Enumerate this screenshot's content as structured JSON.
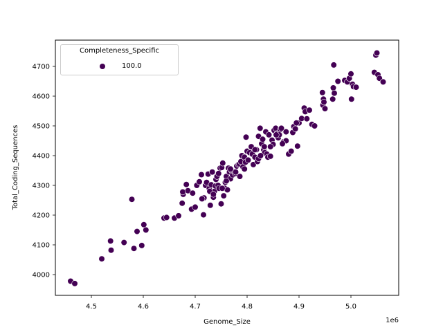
{
  "chart_data": {
    "type": "scatter",
    "title": "",
    "xlabel": "Genome_Size",
    "ylabel": "Total_Coding_Sequences",
    "x_offset_label": "1e6",
    "xlim": [
      4430000.0,
      5090000.0
    ],
    "ylim": [
      3930,
      4790
    ],
    "xticks": [
      4.5,
      4.6,
      4.7,
      4.8,
      4.9,
      5.0
    ],
    "xtick_labels": [
      "4.5",
      "4.6",
      "4.7",
      "4.8",
      "4.9",
      "5.0"
    ],
    "yticks": [
      4000,
      4100,
      4200,
      4300,
      4400,
      4500,
      4600,
      4700
    ],
    "ytick_labels": [
      "4000",
      "4100",
      "4200",
      "4300",
      "4400",
      "4500",
      "4600",
      "4700"
    ],
    "grid": false,
    "legend": {
      "title": "Completeness_Specific",
      "position": "upper left",
      "entries": [
        {
          "label": "100.0",
          "color": "#440154"
        }
      ]
    },
    "series": [
      {
        "name": "100.0",
        "color": "#440154",
        "x": [
          4.46,
          4.468,
          4.52,
          4.537,
          4.538,
          4.563,
          4.578,
          4.582,
          4.588,
          4.597,
          4.601,
          4.605,
          4.64,
          4.645,
          4.66,
          4.668,
          4.675,
          4.677,
          4.676,
          4.683,
          4.686,
          4.693,
          4.695,
          4.7,
          4.703,
          4.708,
          4.712,
          4.716,
          4.717,
          4.72,
          4.722,
          4.725,
          4.727,
          4.729,
          4.731,
          4.733,
          4.735,
          4.737,
          4.739,
          4.74,
          4.742,
          4.744,
          4.746,
          4.748,
          4.75,
          4.751,
          4.753,
          4.755,
          4.757,
          4.758,
          4.76,
          4.762,
          4.764,
          4.766,
          4.768,
          4.77,
          4.772,
          4.775,
          4.777,
          4.78,
          4.783,
          4.785,
          4.788,
          4.79,
          4.792,
          4.795,
          4.797,
          4.798,
          4.8,
          4.802,
          4.805,
          4.808,
          4.81,
          4.812,
          4.815,
          4.818,
          4.82,
          4.822,
          4.825,
          4.828,
          4.83,
          4.832,
          4.834,
          4.836,
          4.838,
          4.84,
          4.842,
          4.845,
          4.848,
          4.85,
          4.852,
          4.855,
          4.858,
          4.86,
          4.862,
          4.864,
          4.866,
          4.868,
          4.87,
          4.875,
          4.88,
          4.885,
          4.888,
          4.89,
          4.893,
          4.897,
          4.9,
          4.905,
          4.91,
          4.912,
          4.915,
          4.92,
          4.925,
          4.93,
          4.945,
          4.946,
          4.947,
          4.948,
          4.95,
          4.965,
          4.966,
          4.967,
          4.968,
          4.975,
          4.988,
          4.993,
          4.997,
          5.0,
          5.001,
          5.003,
          5.005,
          5.01,
          5.045,
          5.048,
          5.05,
          5.052,
          5.055,
          5.062,
          4.713,
          4.728,
          4.745,
          4.76,
          4.768,
          4.778,
          4.795,
          4.815,
          4.822,
          4.833,
          4.845,
          4.862,
          4.875,
          4.895,
          4.735,
          4.752,
          4.786,
          4.826,
          4.856,
          4.868
        ],
        "y": [
          3978,
          3970,
          4053,
          4113,
          4082,
          4108,
          4253,
          4088,
          4145,
          4098,
          4168,
          4150,
          4190,
          4192,
          4190,
          4198,
          4240,
          4270,
          4278,
          4303,
          4282,
          4220,
          4274,
          4227,
          4300,
          4312,
          4336,
          4201,
          4258,
          4300,
          4310,
          4338,
          4290,
          4233,
          4302,
          4345,
          4260,
          4280,
          4298,
          4320,
          4330,
          4300,
          4290,
          4358,
          4238,
          4360,
          4375,
          4265,
          4290,
          4310,
          4330,
          4285,
          4358,
          4345,
          4322,
          4350,
          4335,
          4346,
          4340,
          4365,
          4370,
          4372,
          4380,
          4400,
          4362,
          4395,
          4378,
          4462,
          4415,
          4385,
          4410,
          4430,
          4405,
          4370,
          4395,
          4420,
          4380,
          4465,
          4492,
          4440,
          4455,
          4420,
          4410,
          4480,
          4405,
          4395,
          4470,
          4398,
          4452,
          4438,
          4485,
          4492,
          4475,
          4460,
          4475,
          4488,
          4492,
          4440,
          4446,
          4450,
          4405,
          4415,
          4478,
          4498,
          4490,
          4432,
          4510,
          4525,
          4560,
          4548,
          4524,
          4553,
          4505,
          4500,
          4612,
          4570,
          4590,
          4580,
          4558,
          4590,
          4628,
          4705,
          4610,
          4650,
          4653,
          4648,
          4660,
          4675,
          4590,
          4640,
          4632,
          4630,
          4680,
          4738,
          4745,
          4672,
          4660,
          4648,
          4255,
          4280,
          4340,
          4315,
          4355,
          4345,
          4355,
          4420,
          4390,
          4430,
          4430,
          4470,
          4480,
          4510,
          4270,
          4290,
          4330,
          4400,
          4470,
          4440
        ]
      }
    ]
  }
}
